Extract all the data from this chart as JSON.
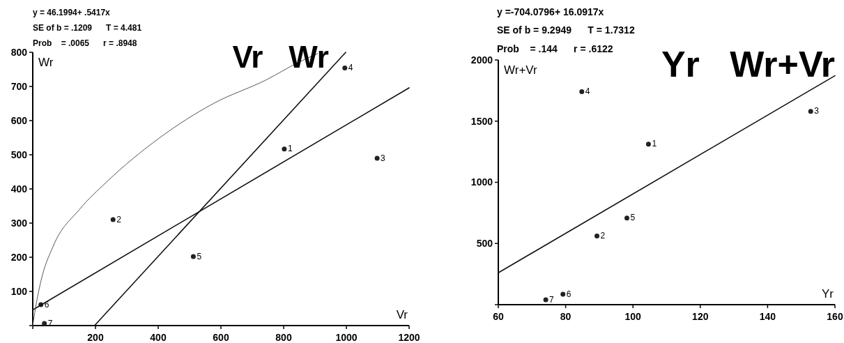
{
  "chart_data": [
    {
      "type": "scatter",
      "title": "Vr   Wr",
      "xlabel": "Vr",
      "ylabel": "Wr",
      "annotations": [
        "y = 46.1994+ .5417x",
        "SE of b = .1209      T = 4.481",
        "Prob    = .0065      r = .8948",
        {
          "text": "1",
          "x": 802,
          "y": 517
        },
        {
          "text": "2",
          "x": 256,
          "y": 310
        },
        {
          "text": "3",
          "x": 1098,
          "y": 490
        },
        {
          "text": "4",
          "x": 995,
          "y": 754
        },
        {
          "text": "5",
          "x": 512,
          "y": 202
        },
        {
          "text": "6",
          "x": 26,
          "y": 61
        },
        {
          "text": "7",
          "x": 37,
          "y": 6
        }
      ],
      "xlim": [
        0,
        1200
      ],
      "ylim": [
        0,
        800
      ],
      "xticks": [
        {
          "value": 0,
          "label": null
        },
        200,
        400,
        600,
        800,
        1000,
        1200
      ],
      "yticks": [
        {
          "value": 0,
          "label": null
        },
        100,
        200,
        300,
        400,
        500,
        600,
        700,
        800
      ],
      "series": [
        {
          "color": "#222222",
          "marker": "circle",
          "x": [
            802,
            256,
            1098,
            995,
            512,
            26,
            37
          ],
          "values": [
            517,
            310,
            490,
            754,
            202,
            61,
            6
          ]
        },
        {
          "type": "line",
          "color": "#111111",
          "x": [
            0,
            1200
          ],
          "values": [
            46,
            696
          ]
        },
        {
          "type": "line",
          "color": "#111111",
          "x": [
            197,
            998
          ],
          "values": [
            0,
            800
          ]
        },
        {
          "type": "line",
          "color": "#555555",
          "x": [
            0,
            8.5,
            26,
            64,
            149,
            235,
            405,
            576,
            746,
            844,
            908
          ],
          "values": [
            0,
            50,
            130,
            230,
            340,
            420,
            550,
            650,
            720,
            769,
            796
          ]
        }
      ]
    },
    {
      "type": "scatter",
      "title": "Yr   Wr+Vr",
      "xlabel": "Yr",
      "ylabel": "Wr+Vr",
      "annotations": [
        "y =-704.0796+ 16.0917x",
        "SE of b = 9.2949      T = 1.7312",
        "Prob    = .144      r = .6122",
        {
          "text": "1",
          "x": 104.6,
          "y": 1312
        },
        {
          "text": "2",
          "x": 89.3,
          "y": 561
        },
        {
          "text": "3",
          "x": 152.8,
          "y": 1580
        },
        {
          "text": "4",
          "x": 84.8,
          "y": 1741
        },
        {
          "text": "5",
          "x": 98.2,
          "y": 708
        },
        {
          "text": "6",
          "x": 79.2,
          "y": 85
        },
        {
          "text": "7",
          "x": 74.1,
          "y": 40
        }
      ],
      "xlim": [
        60,
        160
      ],
      "ylim": [
        0,
        2000
      ],
      "xticks": [
        60,
        80,
        100,
        120,
        140,
        160
      ],
      "yticks": [
        {
          "value": 0,
          "label": null
        },
        500,
        1000,
        1500,
        2000
      ],
      "series": [
        {
          "color": "#222222",
          "marker": "circle",
          "x": [
            104.6,
            89.3,
            152.8,
            84.8,
            98.2,
            79.2,
            74.1
          ],
          "values": [
            1312,
            561,
            1580,
            1741,
            708,
            85,
            40
          ]
        },
        {
          "type": "line",
          "color": "#111111",
          "x": [
            60,
            160
          ],
          "values": [
            261,
            1871
          ]
        }
      ]
    }
  ]
}
